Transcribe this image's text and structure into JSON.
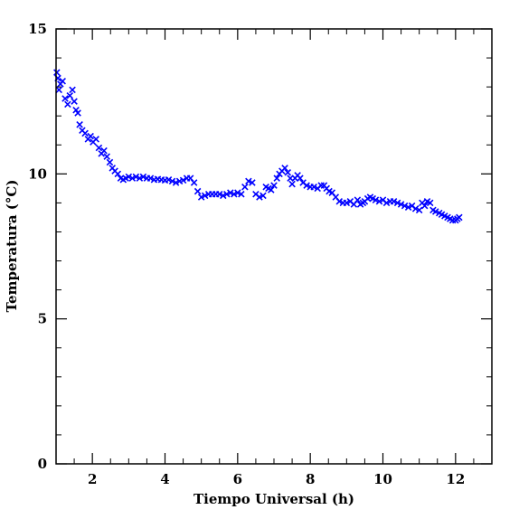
{
  "chart_data": {
    "type": "scatter",
    "marker": "x",
    "marker_color": "#0000ff",
    "title": "",
    "xlabel": "Tiempo Universal (h)",
    "ylabel": "Temperatura (°C)",
    "xlim": [
      1,
      13
    ],
    "ylim": [
      0,
      15
    ],
    "xticks": [
      2,
      4,
      6,
      8,
      10,
      12
    ],
    "yticks": [
      0,
      5,
      10,
      15
    ],
    "x_minor_step": 0.5,
    "y_minor_step": 1,
    "grid": false,
    "legend": "none",
    "points": [
      [
        1.02,
        13.5
      ],
      [
        1.05,
        13.3
      ],
      [
        1.08,
        12.9
      ],
      [
        1.12,
        13.1
      ],
      [
        1.18,
        13.2
      ],
      [
        1.25,
        12.6
      ],
      [
        1.32,
        12.4
      ],
      [
        1.38,
        12.7
      ],
      [
        1.45,
        12.9
      ],
      [
        1.5,
        12.5
      ],
      [
        1.55,
        12.2
      ],
      [
        1.6,
        12.1
      ],
      [
        1.65,
        11.7
      ],
      [
        1.72,
        11.5
      ],
      [
        1.8,
        11.4
      ],
      [
        1.88,
        11.2
      ],
      [
        1.95,
        11.3
      ],
      [
        2.02,
        11.1
      ],
      [
        2.1,
        11.2
      ],
      [
        2.18,
        10.9
      ],
      [
        2.25,
        10.7
      ],
      [
        2.32,
        10.8
      ],
      [
        2.4,
        10.6
      ],
      [
        2.48,
        10.4
      ],
      [
        2.55,
        10.2
      ],
      [
        2.62,
        10.1
      ],
      [
        2.7,
        10.0
      ],
      [
        2.78,
        9.85
      ],
      [
        2.85,
        9.8
      ],
      [
        2.92,
        9.85
      ],
      [
        3.0,
        9.9
      ],
      [
        3.1,
        9.85
      ],
      [
        3.2,
        9.9
      ],
      [
        3.3,
        9.85
      ],
      [
        3.4,
        9.9
      ],
      [
        3.5,
        9.85
      ],
      [
        3.6,
        9.85
      ],
      [
        3.7,
        9.8
      ],
      [
        3.8,
        9.82
      ],
      [
        3.9,
        9.8
      ],
      [
        4.0,
        9.78
      ],
      [
        4.1,
        9.8
      ],
      [
        4.2,
        9.75
      ],
      [
        4.3,
        9.7
      ],
      [
        4.4,
        9.75
      ],
      [
        4.5,
        9.78
      ],
      [
        4.6,
        9.85
      ],
      [
        4.7,
        9.85
      ],
      [
        4.8,
        9.7
      ],
      [
        4.9,
        9.4
      ],
      [
        5.0,
        9.2
      ],
      [
        5.1,
        9.25
      ],
      [
        5.2,
        9.3
      ],
      [
        5.3,
        9.3
      ],
      [
        5.4,
        9.3
      ],
      [
        5.5,
        9.3
      ],
      [
        5.6,
        9.25
      ],
      [
        5.7,
        9.3
      ],
      [
        5.8,
        9.35
      ],
      [
        5.9,
        9.3
      ],
      [
        6.0,
        9.35
      ],
      [
        6.1,
        9.3
      ],
      [
        6.2,
        9.55
      ],
      [
        6.3,
        9.75
      ],
      [
        6.4,
        9.7
      ],
      [
        6.5,
        9.3
      ],
      [
        6.6,
        9.2
      ],
      [
        6.7,
        9.25
      ],
      [
        6.78,
        9.55
      ],
      [
        6.85,
        9.5
      ],
      [
        6.92,
        9.45
      ],
      [
        7.0,
        9.6
      ],
      [
        7.08,
        9.85
      ],
      [
        7.15,
        10.0
      ],
      [
        7.22,
        10.1
      ],
      [
        7.3,
        10.2
      ],
      [
        7.38,
        10.05
      ],
      [
        7.45,
        9.85
      ],
      [
        7.5,
        9.65
      ],
      [
        7.58,
        9.85
      ],
      [
        7.65,
        9.95
      ],
      [
        7.72,
        9.85
      ],
      [
        7.8,
        9.7
      ],
      [
        7.9,
        9.6
      ],
      [
        8.0,
        9.55
      ],
      [
        8.1,
        9.55
      ],
      [
        8.2,
        9.5
      ],
      [
        8.3,
        9.6
      ],
      [
        8.38,
        9.6
      ],
      [
        8.45,
        9.5
      ],
      [
        8.52,
        9.4
      ],
      [
        8.6,
        9.35
      ],
      [
        8.7,
        9.2
      ],
      [
        8.8,
        9.05
      ],
      [
        8.9,
        9.0
      ],
      [
        9.0,
        9.0
      ],
      [
        9.1,
        9.05
      ],
      [
        9.2,
        8.95
      ],
      [
        9.3,
        9.1
      ],
      [
        9.38,
        8.95
      ],
      [
        9.45,
        9.0
      ],
      [
        9.5,
        9.05
      ],
      [
        9.58,
        9.15
      ],
      [
        9.65,
        9.2
      ],
      [
        9.72,
        9.15
      ],
      [
        9.8,
        9.1
      ],
      [
        9.9,
        9.05
      ],
      [
        10.0,
        9.1
      ],
      [
        10.1,
        9.0
      ],
      [
        10.2,
        9.05
      ],
      [
        10.3,
        9.05
      ],
      [
        10.4,
        9.0
      ],
      [
        10.5,
        8.95
      ],
      [
        10.6,
        8.9
      ],
      [
        10.7,
        8.85
      ],
      [
        10.8,
        8.9
      ],
      [
        10.9,
        8.8
      ],
      [
        11.0,
        8.75
      ],
      [
        11.08,
        9.0
      ],
      [
        11.15,
        8.9
      ],
      [
        11.22,
        9.05
      ],
      [
        11.3,
        9.0
      ],
      [
        11.38,
        8.75
      ],
      [
        11.45,
        8.7
      ],
      [
        11.55,
        8.65
      ],
      [
        11.62,
        8.6
      ],
      [
        11.7,
        8.55
      ],
      [
        11.78,
        8.5
      ],
      [
        11.85,
        8.45
      ],
      [
        11.92,
        8.4
      ],
      [
        12.0,
        8.4
      ],
      [
        12.05,
        8.45
      ],
      [
        12.1,
        8.5
      ]
    ]
  }
}
